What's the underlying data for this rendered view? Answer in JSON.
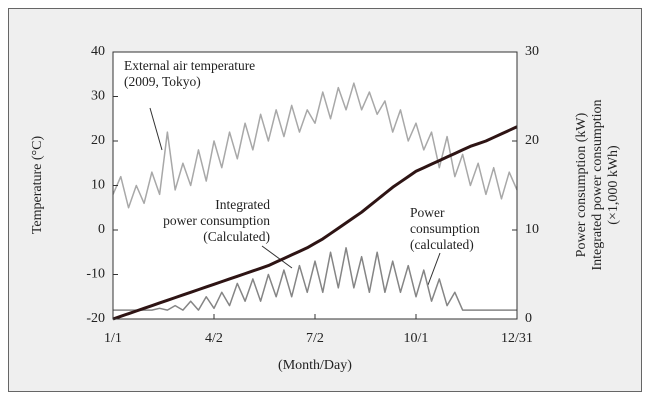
{
  "chart_data": {
    "type": "line",
    "ylabel": "Temperature (°C)",
    "y2label": [
      "Power consumption (kW)",
      "Integrated power consumption",
      "(×1,000 kWh)"
    ],
    "xlabel": "(Month/Day)",
    "x": [
      0,
      7,
      14,
      21,
      28,
      35,
      42,
      49,
      56,
      63,
      70,
      77,
      84,
      91,
      98,
      105,
      112,
      119,
      126,
      133,
      140,
      147,
      154,
      161,
      168,
      175,
      182,
      189,
      196,
      203,
      210,
      217,
      224,
      231,
      238,
      245,
      252,
      259,
      266,
      273,
      280,
      287,
      294,
      301,
      308,
      315,
      322,
      329,
      336,
      343,
      350,
      357,
      364
    ],
    "xlim": [
      0,
      364
    ],
    "xticks": [
      {
        "value": 0,
        "label": "1/1"
      },
      {
        "value": 91,
        "label": "4/2"
      },
      {
        "value": 182,
        "label": "7/2"
      },
      {
        "value": 273,
        "label": "10/1"
      },
      {
        "value": 364,
        "label": "12/31"
      }
    ],
    "ylim": [
      -20,
      40
    ],
    "yticks": [
      -20,
      -10,
      0,
      10,
      20,
      30,
      40
    ],
    "y2lim": [
      0,
      30
    ],
    "y2ticks": [
      0,
      10,
      20,
      30
    ],
    "series": [
      {
        "name": "External air temperature (2009, Tokyo)",
        "color": "#a8a8a8",
        "width": 1.5,
        "values": [
          8,
          12,
          5,
          10,
          6,
          13,
          8,
          22,
          9,
          15,
          10,
          18,
          11,
          20,
          14,
          22,
          16,
          24,
          18,
          26,
          20,
          27,
          21,
          28,
          22,
          27,
          24,
          31,
          25,
          32,
          27,
          33,
          27,
          31,
          26,
          29,
          22,
          27,
          20,
          24,
          18,
          22,
          14,
          21,
          12,
          17,
          10,
          15,
          8,
          14,
          7,
          13,
          9
        ]
      },
      {
        "name": "Power consumption (calculated)",
        "color": "#858585",
        "width": 1.5,
        "axis": "y2",
        "values": [
          1,
          1,
          1,
          1,
          1,
          1,
          1.2,
          1,
          1.5,
          1,
          2,
          1,
          2.5,
          1.2,
          3,
          1.5,
          4,
          2,
          4.5,
          2,
          5,
          2.5,
          5.5,
          2.5,
          6,
          3,
          6.5,
          3,
          7.5,
          3.5,
          8,
          3.5,
          7,
          3,
          7.5,
          3,
          6.5,
          3,
          6,
          2.5,
          5.5,
          2,
          4.5,
          1.5,
          3,
          1,
          1,
          1,
          1,
          1,
          1,
          1,
          1
        ]
      },
      {
        "name": "Integrated power consumption (Calculated)",
        "color": "#2e1414",
        "width": 3,
        "axis": "y2",
        "values": [
          0,
          0.3,
          0.6,
          0.9,
          1.2,
          1.5,
          1.8,
          2.1,
          2.4,
          2.7,
          3.0,
          3.3,
          3.6,
          3.9,
          4.2,
          4.5,
          4.8,
          5.1,
          5.4,
          5.7,
          6.0,
          6.4,
          6.8,
          7.2,
          7.6,
          8.0,
          8.5,
          9.0,
          9.6,
          10.2,
          10.8,
          11.4,
          12.0,
          12.7,
          13.4,
          14.1,
          14.8,
          15.4,
          16.0,
          16.6,
          17.0,
          17.4,
          17.8,
          18.2,
          18.6,
          19.0,
          19.4,
          19.7,
          20.0,
          20.4,
          20.8,
          21.2,
          21.6
        ]
      }
    ],
    "annotations": [
      [
        "External air temperature",
        "(2009, Tokyo)"
      ],
      [
        "Power",
        "consumption",
        "(calculated)"
      ],
      [
        "Integrated",
        "power consumption",
        "(Calculated)"
      ]
    ]
  }
}
